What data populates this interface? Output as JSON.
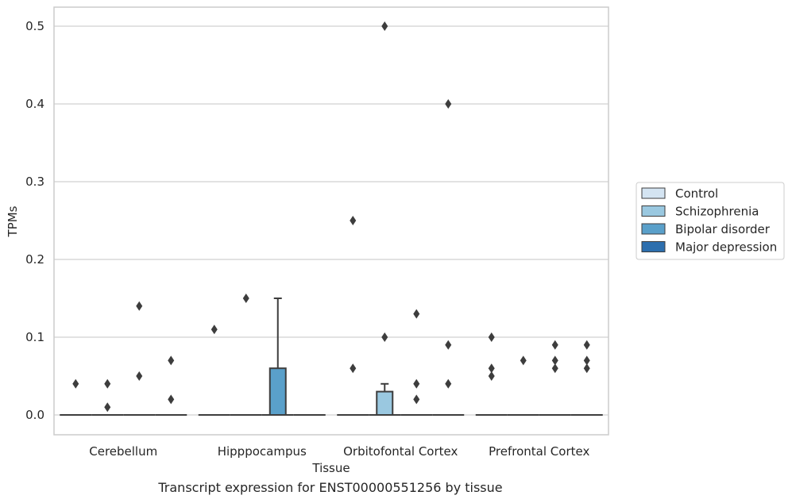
{
  "caption": "Transcript expression for ENST00000551256 by tissue",
  "chart_data": {
    "type": "box",
    "xlabel": "Tissue",
    "ylabel": "TPMs",
    "ylim": [
      -0.025,
      0.525
    ],
    "yticks": [
      "0.0",
      "0.1",
      "0.2",
      "0.3",
      "0.4",
      "0.5"
    ],
    "grid": "horizontal",
    "legend_position": "right",
    "categories": [
      "Cerebellum",
      "Hipppocampus",
      "Orbitofontal Cortex",
      "Prefrontal Cortex"
    ],
    "series": [
      {
        "name": "Control",
        "color": "#d4e4f2"
      },
      {
        "name": "Schizophrenia",
        "color": "#9ac8e0"
      },
      {
        "name": "Bipolar disorder",
        "color": "#5aa0ca"
      },
      {
        "name": "Major depression",
        "color": "#2d6fae"
      }
    ],
    "boxes": [
      {
        "category": 0,
        "series": 0,
        "q1": 0,
        "median": 0,
        "q3": 0,
        "whisker_low": 0,
        "whisker_high": 0,
        "outliers": [
          0.04
        ]
      },
      {
        "category": 0,
        "series": 1,
        "q1": 0,
        "median": 0,
        "q3": 0,
        "whisker_low": 0,
        "whisker_high": 0,
        "outliers": [
          0.01,
          0.04
        ]
      },
      {
        "category": 0,
        "series": 2,
        "q1": 0,
        "median": 0,
        "q3": 0,
        "whisker_low": 0,
        "whisker_high": 0,
        "outliers": [
          0.05,
          0.14
        ]
      },
      {
        "category": 0,
        "series": 3,
        "q1": 0,
        "median": 0,
        "q3": 0,
        "whisker_low": 0,
        "whisker_high": 0,
        "outliers": [
          0.02,
          0.07
        ]
      },
      {
        "category": 1,
        "series": 0,
        "q1": 0,
        "median": 0,
        "q3": 0,
        "whisker_low": 0,
        "whisker_high": 0,
        "outliers": [
          0.11
        ]
      },
      {
        "category": 1,
        "series": 1,
        "q1": 0,
        "median": 0,
        "q3": 0,
        "whisker_low": 0,
        "whisker_high": 0,
        "outliers": [
          0.15
        ]
      },
      {
        "category": 1,
        "series": 2,
        "q1": 0,
        "median": 0,
        "q3": 0.06,
        "whisker_low": 0,
        "whisker_high": 0.15,
        "outliers": []
      },
      {
        "category": 1,
        "series": 3,
        "q1": 0,
        "median": 0,
        "q3": 0,
        "whisker_low": 0,
        "whisker_high": 0,
        "outliers": []
      },
      {
        "category": 2,
        "series": 0,
        "q1": 0,
        "median": 0,
        "q3": 0,
        "whisker_low": 0,
        "whisker_high": 0,
        "outliers": [
          0.06,
          0.25
        ]
      },
      {
        "category": 2,
        "series": 1,
        "q1": 0,
        "median": 0,
        "q3": 0.03,
        "whisker_low": 0,
        "whisker_high": 0.04,
        "outliers": [
          0.1,
          0.5
        ]
      },
      {
        "category": 2,
        "series": 2,
        "q1": 0,
        "median": 0,
        "q3": 0,
        "whisker_low": 0,
        "whisker_high": 0,
        "outliers": [
          0.02,
          0.04,
          0.13
        ]
      },
      {
        "category": 2,
        "series": 3,
        "q1": 0,
        "median": 0,
        "q3": 0,
        "whisker_low": 0,
        "whisker_high": 0,
        "outliers": [
          0.04,
          0.09,
          0.4
        ]
      },
      {
        "category": 3,
        "series": 0,
        "q1": 0,
        "median": 0,
        "q3": 0,
        "whisker_low": 0,
        "whisker_high": 0,
        "outliers": [
          0.05,
          0.06,
          0.1
        ]
      },
      {
        "category": 3,
        "series": 1,
        "q1": 0,
        "median": 0,
        "q3": 0,
        "whisker_low": 0,
        "whisker_high": 0,
        "outliers": [
          0.07
        ]
      },
      {
        "category": 3,
        "series": 2,
        "q1": 0,
        "median": 0,
        "q3": 0,
        "whisker_low": 0,
        "whisker_high": 0,
        "outliers": [
          0.06,
          0.07,
          0.09
        ]
      },
      {
        "category": 3,
        "series": 3,
        "q1": 0,
        "median": 0,
        "q3": 0,
        "whisker_low": 0,
        "whisker_high": 0,
        "outliers": [
          0.06,
          0.07,
          0.09
        ]
      }
    ]
  }
}
